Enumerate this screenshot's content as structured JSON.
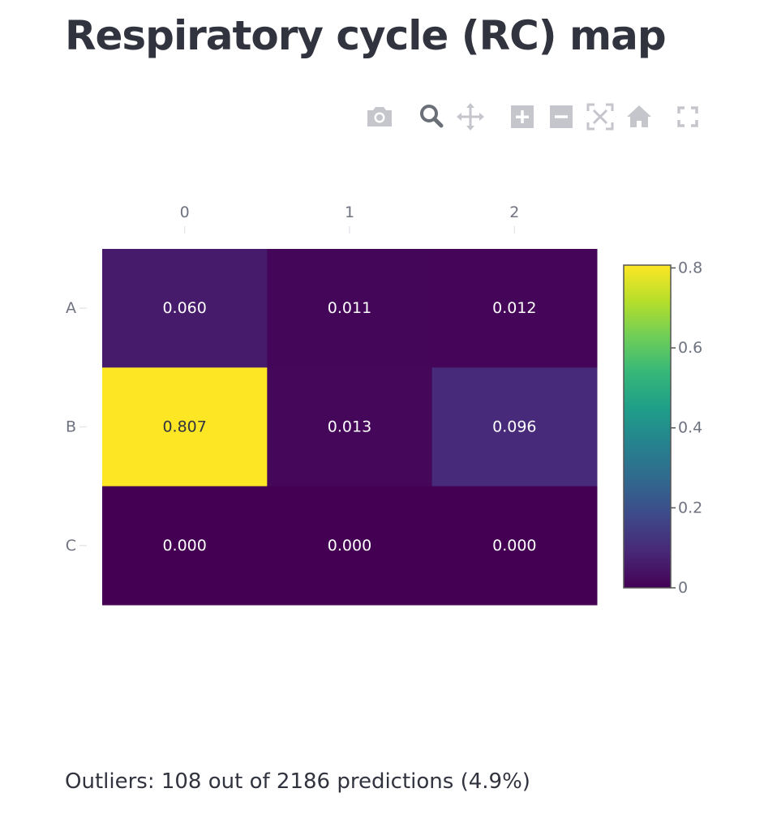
{
  "page": {
    "title": "Respiratory cycle (RC) map",
    "footer": "Outliers: 108 out of 2186 predictions (4.9%)"
  },
  "modebar": {
    "buttons": [
      {
        "name": "camera-icon",
        "state": "normal"
      },
      {
        "name": "zoom-icon",
        "state": "active"
      },
      {
        "name": "pan-icon",
        "state": "normal"
      },
      {
        "name": "zoom-in-icon",
        "state": "normal"
      },
      {
        "name": "zoom-out-icon",
        "state": "normal"
      },
      {
        "name": "autoscale-icon",
        "state": "normal"
      },
      {
        "name": "home-icon",
        "state": "normal"
      },
      {
        "name": "fullscreen-icon",
        "state": "normal"
      }
    ],
    "colors": {
      "normal": "#c4c6cc",
      "active": "#6b6f78"
    }
  },
  "chart_data": {
    "type": "heatmap",
    "title": "",
    "xlabel": "",
    "ylabel": "",
    "x": [
      "0",
      "1",
      "2"
    ],
    "y": [
      "A",
      "B",
      "C"
    ],
    "x_axis_side": "top",
    "z": [
      [
        0.06,
        0.011,
        0.012
      ],
      [
        0.807,
        0.013,
        0.096
      ],
      [
        0.0,
        0.0,
        0.0
      ]
    ],
    "text": [
      [
        "0.060",
        "0.011",
        "0.012"
      ],
      [
        "0.807",
        "0.013",
        "0.096"
      ],
      [
        "0.000",
        "0.000",
        "0.000"
      ]
    ],
    "zmin": 0,
    "zmax": 0.807,
    "colorscale": "Viridis",
    "colorbar": {
      "tickvals": [
        0,
        0.2,
        0.4,
        0.6,
        0.8
      ],
      "ticktext": [
        "0",
        "0.2",
        "0.4",
        "0.6",
        "0.8"
      ]
    },
    "grid": false
  }
}
